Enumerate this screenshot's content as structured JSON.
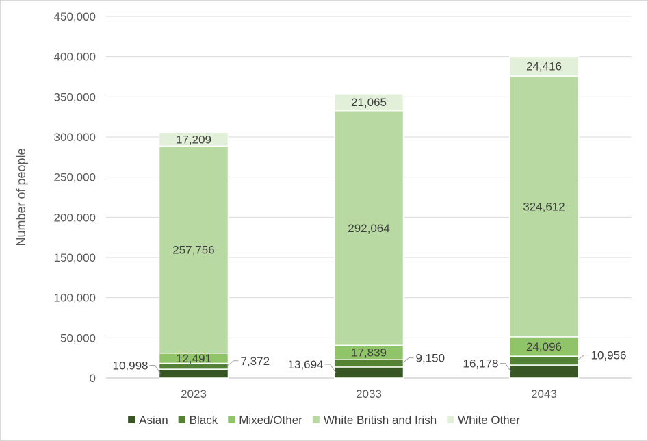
{
  "chart_data": {
    "type": "bar",
    "stacked": true,
    "title": "",
    "xlabel": "",
    "ylabel": "Number of people",
    "ylim": [
      0,
      450000
    ],
    "yticks": [
      0,
      50000,
      100000,
      150000,
      200000,
      250000,
      300000,
      350000,
      400000,
      450000
    ],
    "ytick_labels": [
      "0",
      "50,000",
      "100,000",
      "150,000",
      "200,000",
      "250,000",
      "300,000",
      "350,000",
      "400,000",
      "450,000"
    ],
    "categories": [
      "2023",
      "2033",
      "2043"
    ],
    "grid": true,
    "legend_position": "bottom",
    "series": [
      {
        "name": "Asian",
        "color": "#375623",
        "values": [
          10998,
          13694,
          16178
        ],
        "labels": [
          "10,998",
          "13,694",
          "16,178"
        ],
        "label_placement": "outside-left"
      },
      {
        "name": "Black",
        "color": "#548235",
        "values": [
          7372,
          9150,
          10956
        ],
        "labels": [
          "7,372",
          "9,150",
          "10,956"
        ],
        "label_placement": "outside-right"
      },
      {
        "name": "Mixed/Other",
        "color": "#8fc568",
        "values": [
          12491,
          17839,
          24096
        ],
        "labels": [
          "12,491",
          "17,839",
          "24,096"
        ],
        "label_placement": "inside"
      },
      {
        "name": "White British and Irish",
        "color": "#b8daa2",
        "values": [
          257756,
          292064,
          324612
        ],
        "labels": [
          "257,756",
          "292,064",
          "324,612"
        ],
        "label_placement": "inside"
      },
      {
        "name": "White Other",
        "color": "#e3f0d9",
        "values": [
          17209,
          21065,
          24416
        ],
        "labels": [
          "17,209",
          "21,065",
          "24,416"
        ],
        "label_placement": "inside"
      }
    ]
  }
}
